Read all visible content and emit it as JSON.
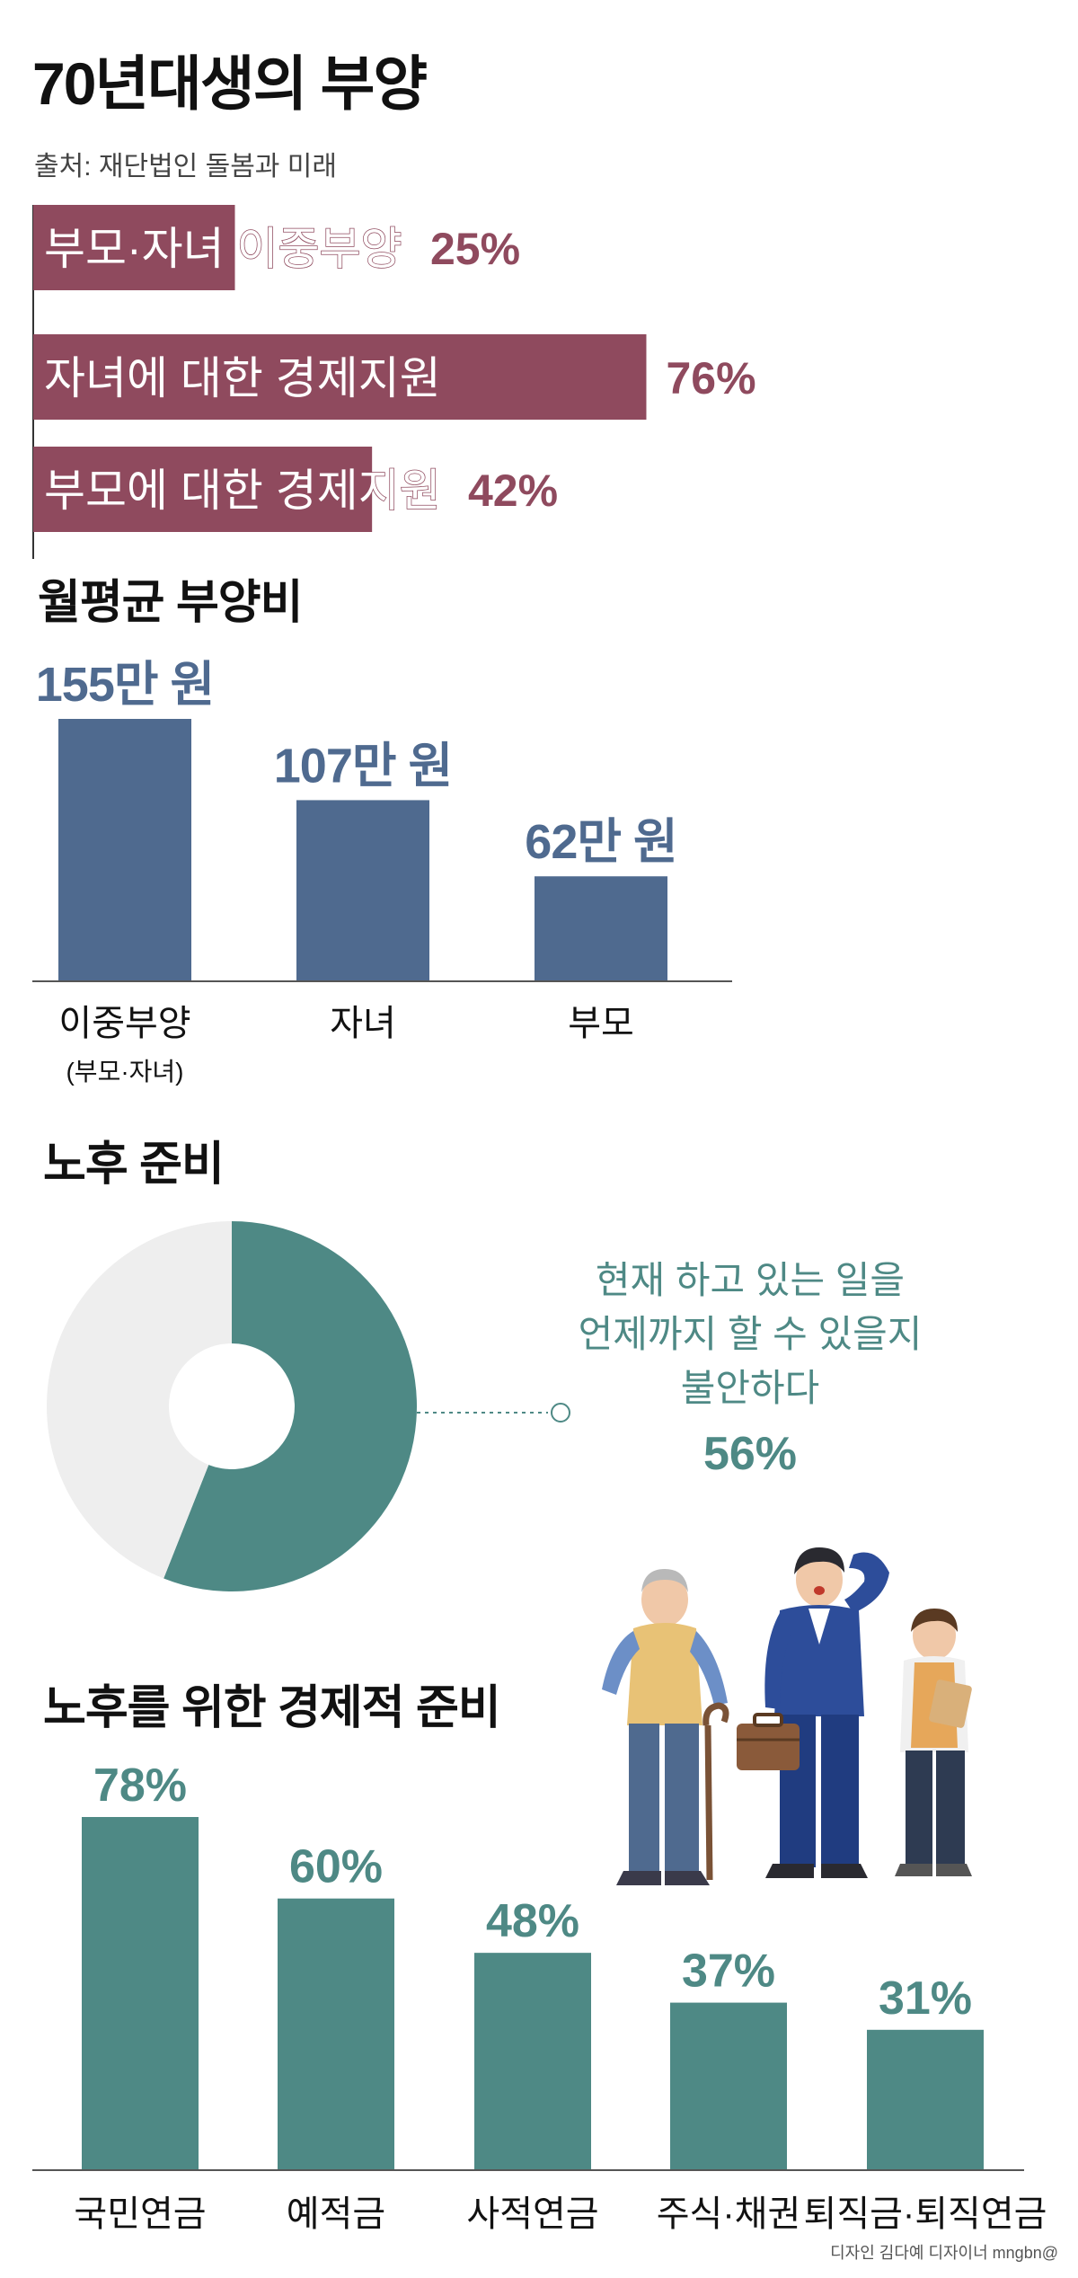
{
  "header": {
    "title": "70년대생의 부양",
    "source": "출처: 재단법인 돌봄과 미래"
  },
  "colors": {
    "maroon": "#8f4a5e",
    "blue": "#4f6a8f",
    "teal": "#4e8985",
    "light_gray": "#eeeeee"
  },
  "sections": {
    "monthly_title": "월평균 부양비",
    "retire_title": "노후 준비",
    "econ_title": "노후를 위한 경제적 준비"
  },
  "donut": {
    "lines": [
      "현재 하고 있는 일을",
      "언제까지 할 수 있을지",
      "불안하다"
    ],
    "value_label": "56%"
  },
  "credit": "디자인 김다예 디자이너 mngbn@",
  "chart_data": [
    {
      "type": "bar",
      "orientation": "horizontal",
      "categories": [
        "부모·자녀 이중부양",
        "자녀에 대한 경제지원",
        "부모에 대한 경제지원"
      ],
      "values": [
        25,
        76,
        42
      ],
      "value_labels": [
        "25%",
        "76%",
        "42%"
      ],
      "xlim": [
        0,
        100
      ]
    },
    {
      "type": "bar",
      "title": "월평균 부양비",
      "categories": [
        "이중부양",
        "자녀",
        "부모"
      ],
      "category_sublabels": [
        "(부모·자녀)",
        "",
        ""
      ],
      "values": [
        155,
        107,
        62
      ],
      "value_labels": [
        "155만 원",
        "107만 원",
        "62만 원"
      ],
      "ylim": [
        0,
        180
      ]
    },
    {
      "type": "pie",
      "title": "노후 준비",
      "values": [
        56,
        44
      ],
      "value_labels": [
        "56%",
        ""
      ],
      "colors": [
        "#4e8985",
        "#eeeeee"
      ],
      "donut": true
    },
    {
      "type": "bar",
      "title": "노후를 위한 경제적 준비",
      "categories": [
        "국민연금",
        "예적금",
        "사적연금",
        "주식·채권",
        "퇴직금·퇴직연금"
      ],
      "values": [
        78,
        60,
        48,
        37,
        31
      ],
      "value_labels": [
        "78%",
        "60%",
        "48%",
        "37%",
        "31%"
      ],
      "ylim": [
        0,
        100
      ]
    }
  ]
}
